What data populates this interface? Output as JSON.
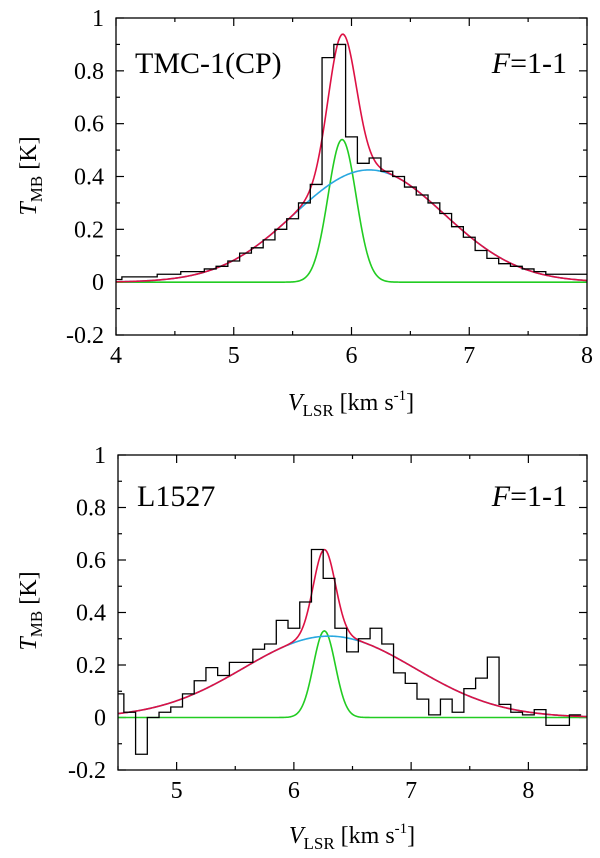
{
  "chart_data": [
    {
      "type": "line",
      "source_label": "TMC-1(CP)",
      "transition_label": "F=1-1",
      "xlabel": "V_LSR [km s-1]",
      "ylabel": "T_MB [K]",
      "xlim": [
        4,
        8
      ],
      "ylim": [
        -0.2,
        1
      ],
      "xticks": [
        "4",
        "5",
        "6",
        "7",
        "8"
      ],
      "yticks": [
        "-0.2",
        "0",
        "0.2",
        "0.4",
        "0.6",
        "0.8",
        "1"
      ],
      "spectrum": {
        "name": "observed spectrum",
        "step": 0.1,
        "x": [
          4.0,
          4.1,
          4.2,
          4.3,
          4.4,
          4.5,
          4.6,
          4.7,
          4.8,
          4.9,
          5.0,
          5.1,
          5.2,
          5.3,
          5.4,
          5.5,
          5.6,
          5.7,
          5.8,
          5.9,
          6.0,
          6.1,
          6.2,
          6.3,
          6.4,
          6.5,
          6.6,
          6.7,
          6.8,
          6.9,
          7.0,
          7.1,
          7.2,
          7.3,
          7.4,
          7.5,
          7.6,
          7.7,
          7.8,
          7.9,
          8.0
        ],
        "y": [
          0.01,
          0.02,
          0.02,
          0.02,
          0.03,
          0.03,
          0.04,
          0.04,
          0.05,
          0.06,
          0.08,
          0.11,
          0.13,
          0.16,
          0.2,
          0.24,
          0.3,
          0.37,
          0.85,
          0.9,
          0.55,
          0.45,
          0.47,
          0.42,
          0.4,
          0.36,
          0.33,
          0.3,
          0.26,
          0.21,
          0.17,
          0.12,
          0.09,
          0.07,
          0.06,
          0.05,
          0.04,
          0.03,
          0.03,
          0.03,
          0.03
        ]
      },
      "components": [
        {
          "name": "narrow component",
          "color": "#22cc22",
          "peak": 0.54,
          "center": 5.92,
          "fwhm": 0.28
        },
        {
          "name": "broad component",
          "color": "#29a8e0",
          "peak": 0.425,
          "center": 6.15,
          "fwhm": 1.5
        }
      ],
      "total_fit": {
        "name": "total fit",
        "color": "#dd1144"
      }
    },
    {
      "type": "line",
      "source_label": "L1527",
      "transition_label": "F=1-1",
      "xlabel": "V_LSR [km s-1]",
      "ylabel": "T_MB [K]",
      "xlim": [
        4.5,
        8.5
      ],
      "ylim": [
        -0.2,
        1
      ],
      "xticks": [
        "5",
        "6",
        "7",
        "8"
      ],
      "yticks": [
        "-0.2",
        "0",
        "0.2",
        "0.4",
        "0.6",
        "0.8",
        "1"
      ],
      "spectrum": {
        "name": "observed spectrum",
        "step": 0.1,
        "x": [
          4.5,
          4.6,
          4.7,
          4.8,
          4.9,
          5.0,
          5.1,
          5.2,
          5.3,
          5.4,
          5.5,
          5.6,
          5.7,
          5.8,
          5.9,
          6.0,
          6.1,
          6.2,
          6.3,
          6.4,
          6.5,
          6.6,
          6.7,
          6.8,
          6.9,
          7.0,
          7.1,
          7.2,
          7.3,
          7.4,
          7.5,
          7.6,
          7.7,
          7.8,
          7.9,
          8.0,
          8.1,
          8.2,
          8.3,
          8.4
        ],
        "y": [
          0.09,
          0.02,
          -0.14,
          0.0,
          0.02,
          0.04,
          0.09,
          0.14,
          0.19,
          0.16,
          0.21,
          0.21,
          0.26,
          0.28,
          0.37,
          0.34,
          0.44,
          0.64,
          0.53,
          0.34,
          0.25,
          0.3,
          0.34,
          0.28,
          0.17,
          0.13,
          0.07,
          0.01,
          0.07,
          0.02,
          0.11,
          0.15,
          0.23,
          0.05,
          0.02,
          0.01,
          0.03,
          -0.03,
          -0.03,
          0.01
        ]
      },
      "components": [
        {
          "name": "narrow component",
          "color": "#22cc22",
          "peak": 0.33,
          "center": 6.26,
          "fwhm": 0.22
        },
        {
          "name": "broad component",
          "color": "#29a8e0",
          "peak": 0.31,
          "center": 6.3,
          "fwhm": 1.72
        }
      ],
      "total_fit": {
        "name": "total fit",
        "color": "#dd1144"
      }
    }
  ]
}
